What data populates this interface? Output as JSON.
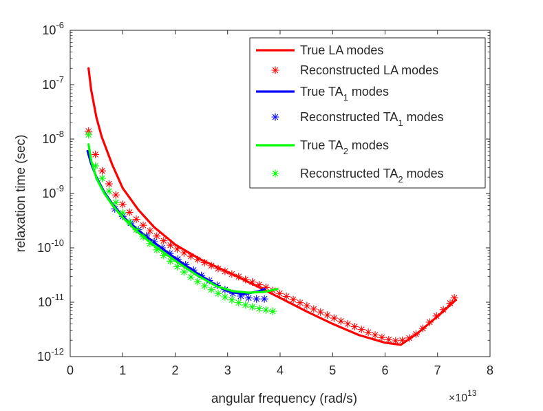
{
  "chart_data": {
    "type": "line",
    "title": "",
    "xlabel": "angular frequency (rad/s)",
    "ylabel": "relaxation time (sec)",
    "x_multiplier_label": "×10",
    "x_multiplier_exponent": "13",
    "xscale": "linear",
    "yscale": "log",
    "xlim": [
      0,
      8
    ],
    "ylim": [
      1e-12,
      1e-06
    ],
    "grid": false,
    "legend_position": "top-right",
    "x_ticks": [
      {
        "value": 0,
        "label": "0"
      },
      {
        "value": 1,
        "label": "1"
      },
      {
        "value": 2,
        "label": "2"
      },
      {
        "value": 3,
        "label": "3"
      },
      {
        "value": 4,
        "label": "4"
      },
      {
        "value": 5,
        "label": "5"
      },
      {
        "value": 6,
        "label": "6"
      },
      {
        "value": 7,
        "label": "7"
      },
      {
        "value": 8,
        "label": "8"
      }
    ],
    "y_ticks": [
      {
        "value": 1e-12,
        "base": "10",
        "exp": "-12"
      },
      {
        "value": 1e-11,
        "base": "10",
        "exp": "-11"
      },
      {
        "value": 1e-10,
        "base": "10",
        "exp": "-10"
      },
      {
        "value": 1e-09,
        "base": "10",
        "exp": "-9"
      },
      {
        "value": 1e-08,
        "base": "10",
        "exp": "-8"
      },
      {
        "value": 1e-07,
        "base": "10",
        "exp": "-7"
      },
      {
        "value": 1e-06,
        "base": "10",
        "exp": "-6"
      }
    ],
    "series": [
      {
        "name": "True LA modes",
        "legend_text": "True LA modes",
        "legend_sub": "",
        "legend_tail": "",
        "style": "line",
        "color": "#ff0000",
        "x": [
          0.35,
          0.4,
          0.5,
          0.6,
          0.8,
          1.0,
          1.3,
          1.6,
          2.0,
          2.5,
          3.0,
          3.5,
          4.0,
          4.5,
          5.0,
          5.5,
          6.0,
          6.3,
          6.6,
          7.0,
          7.35
        ],
        "y": [
          2e-07,
          8e-08,
          2.5e-08,
          1.1e-08,
          3.4e-09,
          1.25e-09,
          5e-10,
          2.4e-10,
          1.15e-10,
          6e-11,
          3.6e-11,
          2.1e-11,
          1.2e-11,
          6.8e-12,
          4e-12,
          2.5e-12,
          1.8e-12,
          1.65e-12,
          2.6e-12,
          5.5e-12,
          1.1e-11
        ]
      },
      {
        "name": "Reconstructed LA modes",
        "legend_text": "Reconstructed LA modes",
        "legend_sub": "",
        "legend_tail": "",
        "style": "markers",
        "color": "#ff0000",
        "x": [
          0.35,
          0.48,
          0.61,
          0.74,
          0.87,
          1.0,
          1.13,
          1.26,
          1.39,
          1.52,
          1.65,
          1.78,
          1.91,
          2.04,
          2.17,
          2.3,
          2.43,
          2.56,
          2.69,
          2.82,
          2.95,
          3.08,
          3.21,
          3.34,
          3.47,
          3.6,
          3.73,
          3.86,
          3.99,
          4.12,
          4.25,
          4.38,
          4.51,
          4.64,
          4.77,
          4.9,
          5.03,
          5.16,
          5.29,
          5.42,
          5.55,
          5.68,
          5.81,
          5.94,
          6.07,
          6.2,
          6.33,
          6.46,
          6.59,
          6.72,
          6.85,
          6.98,
          7.11,
          7.24,
          7.32
        ],
        "y": [
          1.4e-08,
          5.2e-09,
          2.6e-09,
          1.5e-09,
          9.4e-10,
          6.3e-10,
          4.5e-10,
          3.35e-10,
          2.6e-10,
          2.05e-10,
          1.65e-10,
          1.35e-10,
          1.12e-10,
          9.5e-11,
          8.1e-11,
          7e-11,
          6.1e-11,
          5.35e-11,
          4.7e-11,
          4.15e-11,
          3.7e-11,
          3.3e-11,
          2.95e-11,
          2.62e-11,
          2.35e-11,
          2.1e-11,
          1.88e-11,
          1.65e-11,
          1.45e-11,
          1.28e-11,
          1.12e-11,
          9.8e-12,
          8.6e-12,
          7.5e-12,
          6.6e-12,
          5.8e-12,
          5.1e-12,
          4.5e-12,
          4e-12,
          3.55e-12,
          3.15e-12,
          2.8e-12,
          2.5e-12,
          2.25e-12,
          2.05e-12,
          1.95e-12,
          2e-12,
          2.2e-12,
          2.6e-12,
          3.3e-12,
          4.3e-12,
          5.6e-12,
          7.3e-12,
          9.6e-12,
          1.2e-11
        ]
      },
      {
        "name": "True TA1 modes",
        "legend_text": "True TA",
        "legend_sub": "1",
        "legend_tail": " modes",
        "style": "line",
        "color": "#0000ff",
        "x": [
          0.33,
          0.4,
          0.5,
          0.65,
          0.8,
          1.0,
          1.3,
          1.6,
          2.0,
          2.4,
          2.8,
          3.0,
          3.3,
          3.6,
          3.7
        ],
        "y": [
          6e-09,
          3.5e-09,
          2e-09,
          1.05e-09,
          6.5e-10,
          3.8e-10,
          2.1e-10,
          1.25e-10,
          6.5e-11,
          3.5e-11,
          2e-11,
          1.6e-11,
          1.4e-11,
          1.6e-11,
          1.75e-11
        ]
      },
      {
        "name": "Reconstructed TA1 modes",
        "legend_text": "Reconstructed TA",
        "legend_sub": "1",
        "legend_tail": " modes",
        "style": "markers",
        "color": "#0000ff",
        "x": [
          0.85,
          1.0,
          1.15,
          1.3,
          1.45,
          1.6,
          1.75,
          1.9,
          2.05,
          2.2,
          2.35,
          2.5,
          2.65,
          2.8,
          2.95,
          3.1,
          3.25,
          3.4,
          3.55,
          3.7
        ],
        "y": [
          5.2e-10,
          3.8e-10,
          2.85e-10,
          2.15e-10,
          1.65e-10,
          1.3e-10,
          1e-10,
          7.9e-11,
          6.2e-11,
          4.9e-11,
          3.9e-11,
          3.1e-11,
          2.5e-11,
          2.05e-11,
          1.7e-11,
          1.45e-11,
          1.3e-11,
          1.2e-11,
          1.15e-11,
          1.15e-11
        ]
      },
      {
        "name": "True TA2 modes",
        "legend_text": "True TA",
        "legend_sub": "2",
        "legend_tail": " modes",
        "style": "line",
        "color": "#00ff00",
        "x": [
          0.35,
          0.4,
          0.5,
          0.65,
          0.8,
          1.0,
          1.3,
          1.6,
          2.0,
          2.4,
          2.8,
          3.1,
          3.4,
          3.7,
          3.95
        ],
        "y": [
          8e-09,
          4e-09,
          1.9e-09,
          1e-09,
          6.2e-10,
          3.6e-10,
          1.9e-10,
          1.1e-10,
          5.8e-11,
          3.2e-11,
          1.95e-11,
          1.6e-11,
          1.5e-11,
          1.55e-11,
          1.75e-11
        ]
      },
      {
        "name": "Reconstructed TA2 modes",
        "legend_text": "Reconstructed TA",
        "legend_sub": "2",
        "legend_tail": " modes",
        "style": "markers",
        "color": "#00ff00",
        "x": [
          0.35,
          0.48,
          0.61,
          0.74,
          0.87,
          1.0,
          1.13,
          1.26,
          1.39,
          1.52,
          1.65,
          1.78,
          1.91,
          2.04,
          2.17,
          2.3,
          2.43,
          2.56,
          2.69,
          2.82,
          2.95,
          3.08,
          3.21,
          3.34,
          3.47,
          3.6,
          3.73,
          3.86
        ],
        "y": [
          1.2e-08,
          3.2e-09,
          1.9e-09,
          1.1e-09,
          6.8e-10,
          4.4e-10,
          3e-10,
          2.15e-10,
          1.6e-10,
          1.2e-10,
          9.2e-11,
          7.2e-11,
          5.7e-11,
          4.5e-11,
          3.6e-11,
          2.9e-11,
          2.4e-11,
          2e-11,
          1.7e-11,
          1.45e-11,
          1.25e-11,
          1.1e-11,
          9.8e-12,
          8.9e-12,
          8.2e-12,
          7.6e-12,
          7.2e-12,
          6.8e-12
        ]
      }
    ]
  }
}
